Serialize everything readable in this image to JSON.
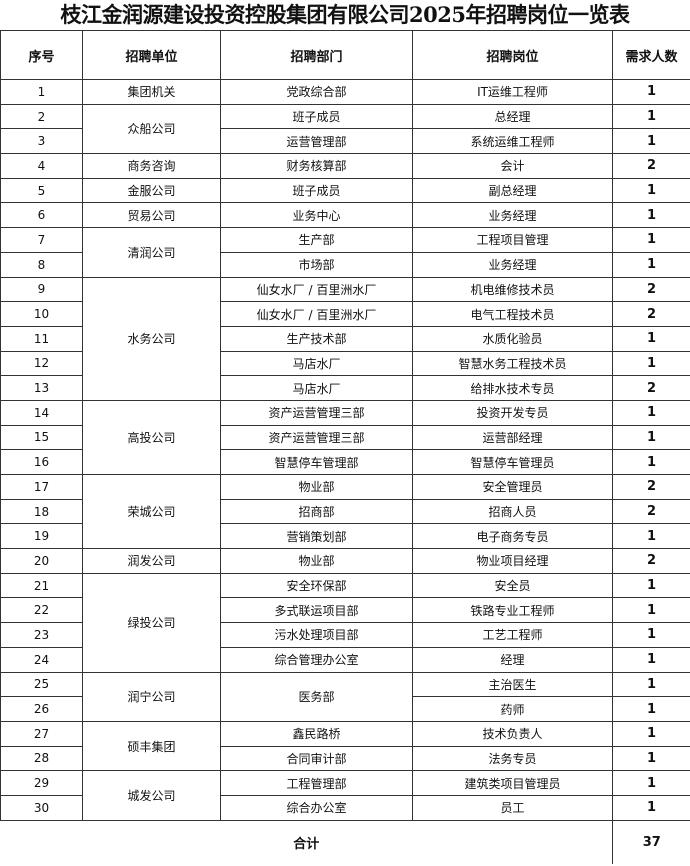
{
  "title": "枝江金润源建设投资控股集团有限公司2025年招聘岗位一览表",
  "headers": [
    "序号",
    "招聘单位",
    "招聘部门",
    "招聘岗位",
    "需求人数"
  ],
  "rows": [
    {
      "no": "1",
      "unit": "集团机关",
      "unit_rows": 1,
      "dept": "党政综合部",
      "dept_rows": 1,
      "position": "IT运维工程师",
      "count": "1"
    },
    {
      "no": "2",
      "unit": "众船公司",
      "unit_rows": 2,
      "dept": "班子成员",
      "dept_rows": 1,
      "position": "总经理",
      "count": "1"
    },
    {
      "no": "3",
      "dept": "运营管理部",
      "dept_rows": 1,
      "position": "系统运维工程师",
      "count": "1"
    },
    {
      "no": "4",
      "unit": "商务咨询",
      "unit_rows": 1,
      "dept": "财务核算部",
      "dept_rows": 1,
      "position": "会计",
      "count": "2"
    },
    {
      "no": "5",
      "unit": "金服公司",
      "unit_rows": 1,
      "dept": "班子成员",
      "dept_rows": 1,
      "position": "副总经理",
      "count": "1"
    },
    {
      "no": "6",
      "unit": "贸易公司",
      "unit_rows": 1,
      "dept": "业务中心",
      "dept_rows": 1,
      "position": "业务经理",
      "count": "1"
    },
    {
      "no": "7",
      "unit": "清润公司",
      "unit_rows": 2,
      "dept": "生产部",
      "dept_rows": 1,
      "position": "工程项目管理",
      "count": "1"
    },
    {
      "no": "8",
      "dept": "市场部",
      "dept_rows": 1,
      "position": "业务经理",
      "count": "1"
    },
    {
      "no": "9",
      "unit": "水务公司",
      "unit_rows": 5,
      "dept": "仙女水厂 / 百里洲水厂",
      "dept_rows": 1,
      "position": "机电维修技术员",
      "count": "2"
    },
    {
      "no": "10",
      "dept": "仙女水厂 / 百里洲水厂",
      "dept_rows": 1,
      "position": "电气工程技术员",
      "count": "2"
    },
    {
      "no": "11",
      "dept": "生产技术部",
      "dept_rows": 1,
      "position": "水质化验员",
      "count": "1"
    },
    {
      "no": "12",
      "dept": "马店水厂",
      "dept_rows": 1,
      "position": "智慧水务工程技术员",
      "count": "1"
    },
    {
      "no": "13",
      "dept": "马店水厂",
      "dept_rows": 1,
      "position": "给排水技术专员",
      "count": "2"
    },
    {
      "no": "14",
      "unit": "高投公司",
      "unit_rows": 3,
      "dept": "资产运营管理三部",
      "dept_rows": 1,
      "position": "投资开发专员",
      "count": "1"
    },
    {
      "no": "15",
      "dept": "资产运营管理三部",
      "dept_rows": 1,
      "position": "运营部经理",
      "count": "1"
    },
    {
      "no": "16",
      "dept": "智慧停车管理部",
      "dept_rows": 1,
      "position": "智慧停车管理员",
      "count": "1"
    },
    {
      "no": "17",
      "unit": "荣城公司",
      "unit_rows": 3,
      "dept": "物业部",
      "dept_rows": 1,
      "position": "安全管理员",
      "count": "2"
    },
    {
      "no": "18",
      "dept": "招商部",
      "dept_rows": 1,
      "position": "招商人员",
      "count": "2"
    },
    {
      "no": "19",
      "dept": "营销策划部",
      "dept_rows": 1,
      "position": "电子商务专员",
      "count": "1"
    },
    {
      "no": "20",
      "unit": "润发公司",
      "unit_rows": 1,
      "dept": "物业部",
      "dept_rows": 1,
      "position": "物业项目经理",
      "count": "2"
    },
    {
      "no": "21",
      "unit": "绿投公司",
      "unit_rows": 4,
      "dept": "安全环保部",
      "dept_rows": 1,
      "position": "安全员",
      "count": "1"
    },
    {
      "no": "22",
      "dept": "多式联运项目部",
      "dept_rows": 1,
      "position": "铁路专业工程师",
      "count": "1"
    },
    {
      "no": "23",
      "dept": "污水处理项目部",
      "dept_rows": 1,
      "position": "工艺工程师",
      "count": "1"
    },
    {
      "no": "24",
      "dept": "综合管理办公室",
      "dept_rows": 1,
      "position": "经理",
      "count": "1"
    },
    {
      "no": "25",
      "unit": "润宁公司",
      "unit_rows": 2,
      "dept": "医务部",
      "dept_rows": 2,
      "position": "主治医生",
      "count": "1"
    },
    {
      "no": "26",
      "position": "药师",
      "count": "1"
    },
    {
      "no": "27",
      "unit": "硕丰集团",
      "unit_rows": 2,
      "dept": "鑫民路桥",
      "dept_rows": 1,
      "position": "技术负责人",
      "count": "1"
    },
    {
      "no": "28",
      "dept": "合同审计部",
      "dept_rows": 1,
      "position": "法务专员",
      "count": "1"
    },
    {
      "no": "29",
      "unit": "城发公司",
      "unit_rows": 2,
      "dept": "工程管理部",
      "dept_rows": 1,
      "position": "建筑类项目管理员",
      "count": "1"
    },
    {
      "no": "30",
      "dept": "综合办公室",
      "dept_rows": 1,
      "position": "员工",
      "count": "1"
    }
  ],
  "total": {
    "label": "合计",
    "count": "37"
  }
}
